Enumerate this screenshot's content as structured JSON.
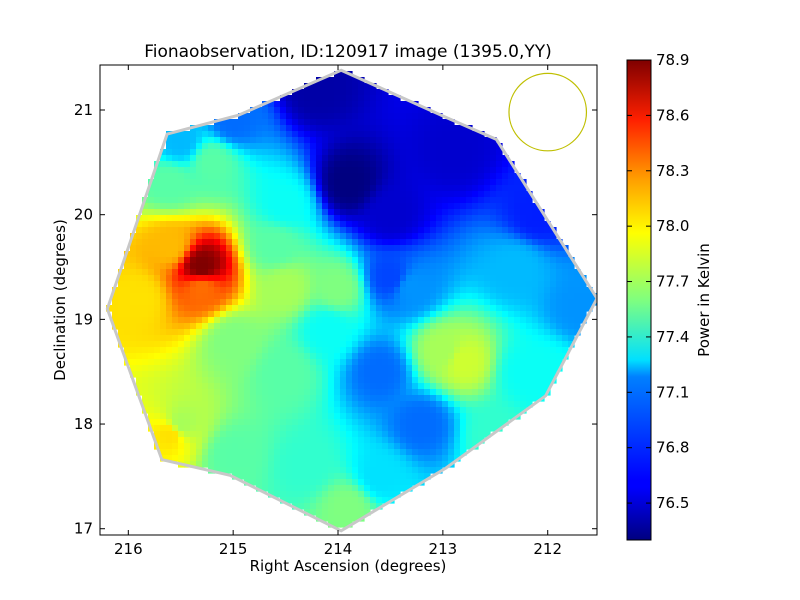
{
  "chart_data": {
    "type": "heatmap",
    "title": "Fionaobservation, ID:120917 image (1395.0,YY)",
    "xlabel": "Right Ascension (degrees)",
    "ylabel": "Declination (degrees)",
    "xlim": [
      216.27,
      211.53
    ],
    "ylim": [
      16.94,
      21.43
    ],
    "x_ticks": [
      216,
      215,
      214,
      213,
      212
    ],
    "y_ticks": [
      17,
      18,
      19,
      20,
      21
    ],
    "x_tick_labels": [
      "216",
      "215",
      "214",
      "213",
      "212"
    ],
    "y_tick_labels": [
      "17",
      "18",
      "19",
      "20",
      "21"
    ],
    "colorbar": {
      "label": "Power in Kelvin",
      "vmin": 76.3,
      "vmax": 78.9,
      "ticks": [
        76.5,
        76.8,
        77.1,
        77.4,
        77.7,
        78.0,
        78.3,
        78.6,
        78.9
      ],
      "tick_labels": [
        "76.5",
        "76.8",
        "77.1",
        "77.4",
        "77.7",
        "78.0",
        "78.3",
        "78.6",
        "78.9"
      ],
      "colormap": "jet"
    },
    "footprint": {
      "shape": "octagon",
      "vertices_radec": [
        [
          213.97,
          21.38
        ],
        [
          212.97,
          20.93
        ],
        [
          212.49,
          20.72
        ],
        [
          211.53,
          19.2
        ],
        [
          212.02,
          18.27
        ],
        [
          212.97,
          17.58
        ],
        [
          213.97,
          16.98
        ],
        [
          215.03,
          17.51
        ],
        [
          215.68,
          17.66
        ],
        [
          216.2,
          19.1
        ],
        [
          215.63,
          20.77
        ],
        [
          214.95,
          20.95
        ]
      ]
    },
    "field_values_K": [
      {
        "ra": 215.3,
        "dec": 19.5,
        "value": 78.9
      },
      {
        "ra": 215.3,
        "dec": 19.3,
        "value": 78.3
      },
      {
        "ra": 215.6,
        "dec": 19.7,
        "value": 78.1
      },
      {
        "ra": 215.9,
        "dec": 19.2,
        "value": 78.0
      },
      {
        "ra": 215.6,
        "dec": 20.3,
        "value": 77.5
      },
      {
        "ra": 215.5,
        "dec": 20.7,
        "value": 77.1
      },
      {
        "ra": 215.0,
        "dec": 20.9,
        "value": 76.9
      },
      {
        "ra": 214.2,
        "dec": 21.2,
        "value": 76.4
      },
      {
        "ra": 213.9,
        "dec": 20.3,
        "value": 76.3
      },
      {
        "ra": 213.5,
        "dec": 20.0,
        "value": 76.5
      },
      {
        "ra": 212.9,
        "dec": 20.6,
        "value": 76.5
      },
      {
        "ra": 212.1,
        "dec": 20.0,
        "value": 76.7
      },
      {
        "ra": 212.3,
        "dec": 19.5,
        "value": 77.1
      },
      {
        "ra": 211.7,
        "dec": 19.1,
        "value": 77.0
      },
      {
        "ra": 213.3,
        "dec": 19.3,
        "value": 77.0
      },
      {
        "ra": 213.5,
        "dec": 19.4,
        "value": 76.8
      },
      {
        "ra": 212.8,
        "dec": 18.6,
        "value": 77.8
      },
      {
        "ra": 213.0,
        "dec": 18.7,
        "value": 77.7
      },
      {
        "ra": 212.2,
        "dec": 18.5,
        "value": 77.3
      },
      {
        "ra": 213.2,
        "dec": 18.0,
        "value": 76.9
      },
      {
        "ra": 213.6,
        "dec": 18.5,
        "value": 76.9
      },
      {
        "ra": 214.1,
        "dec": 18.9,
        "value": 77.3
      },
      {
        "ra": 214.5,
        "dec": 19.3,
        "value": 77.7
      },
      {
        "ra": 214.0,
        "dec": 19.3,
        "value": 77.6
      },
      {
        "ra": 214.5,
        "dec": 18.5,
        "value": 77.5
      },
      {
        "ra": 215.0,
        "dec": 18.8,
        "value": 77.6
      },
      {
        "ra": 215.5,
        "dec": 18.0,
        "value": 77.7
      },
      {
        "ra": 215.6,
        "dec": 17.9,
        "value": 78.0
      },
      {
        "ra": 215.0,
        "dec": 17.7,
        "value": 77.5
      },
      {
        "ra": 214.3,
        "dec": 17.6,
        "value": 77.4
      },
      {
        "ra": 213.9,
        "dec": 17.2,
        "value": 77.6
      },
      {
        "ra": 213.6,
        "dec": 17.5,
        "value": 77.2
      },
      {
        "ra": 212.5,
        "dec": 17.9,
        "value": 77.4
      },
      {
        "ra": 212.0,
        "dec": 18.5,
        "value": 77.3
      },
      {
        "ra": 215.2,
        "dec": 20.5,
        "value": 77.5
      },
      {
        "ra": 214.5,
        "dec": 20.1,
        "value": 77.3
      },
      {
        "ra": 214.6,
        "dec": 19.7,
        "value": 77.5
      }
    ],
    "beam_circle": {
      "ra": 212.0,
      "dec": 20.98,
      "radius_deg": 0.37,
      "color": "#bfbf00"
    },
    "grid": false,
    "legend": "none"
  }
}
